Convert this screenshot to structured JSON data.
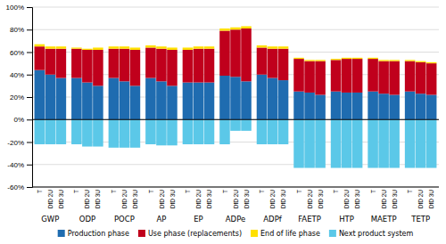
{
  "chart_data": {
    "type": "bar",
    "stacked": true,
    "categories": [
      "GWP",
      "ODP",
      "POCP",
      "AP",
      "EP",
      "ADPe",
      "ADPf",
      "FAETP",
      "HTP",
      "MAETP",
      "TETP"
    ],
    "subcategories": [
      "T",
      "DfD 2U",
      "DfD 3U"
    ],
    "series": [
      {
        "name": "Production phase",
        "color": "#1F6CB0",
        "values": [
          [
            44,
            40,
            37
          ],
          [
            37,
            33,
            30
          ],
          [
            37,
            34,
            30
          ],
          [
            37,
            34,
            30
          ],
          [
            33,
            33,
            33
          ],
          [
            39,
            38,
            34
          ],
          [
            40,
            37,
            35
          ],
          [
            25,
            24,
            22
          ],
          [
            25,
            24,
            24
          ],
          [
            25,
            23,
            22
          ],
          [
            25,
            23,
            22
          ]
        ]
      },
      {
        "name": "Use phase (replacements)",
        "color": "#C0001C",
        "values": [
          [
            21,
            23,
            26
          ],
          [
            26,
            29,
            32
          ],
          [
            26,
            29,
            32
          ],
          [
            27,
            29,
            32
          ],
          [
            29,
            30,
            30
          ],
          [
            40,
            42,
            47
          ],
          [
            24,
            26,
            28
          ],
          [
            29,
            28,
            30
          ],
          [
            28,
            30,
            30
          ],
          [
            29,
            29,
            30
          ],
          [
            27,
            28,
            28
          ]
        ]
      },
      {
        "name": "End of life phase",
        "color": "#FFE000",
        "values": [
          [
            2,
            2,
            2
          ],
          [
            1,
            1,
            2
          ],
          [
            2,
            2,
            2
          ],
          [
            2,
            2,
            2
          ],
          [
            2,
            2,
            2
          ],
          [
            2,
            2,
            2
          ],
          [
            2,
            2,
            2
          ],
          [
            1,
            1,
            1
          ],
          [
            1,
            1,
            1
          ],
          [
            1,
            1,
            1
          ],
          [
            1,
            1,
            1
          ]
        ]
      },
      {
        "name": "Next product system",
        "color": "#5BC8E8",
        "values": [
          [
            -22,
            -22,
            -22
          ],
          [
            -22,
            -24,
            -24
          ],
          [
            -25,
            -25,
            -25
          ],
          [
            -22,
            -23,
            -23
          ],
          [
            -22,
            -22,
            -22
          ],
          [
            -22,
            -10,
            -10
          ],
          [
            -22,
            -22,
            -22
          ],
          [
            -43,
            -43,
            -43
          ],
          [
            -43,
            -43,
            -43
          ],
          [
            -43,
            -43,
            -43
          ],
          [
            -43,
            -43,
            -43
          ]
        ]
      }
    ],
    "ylim": [
      -60,
      100
    ],
    "yticks": [
      {
        "value": -60,
        "label": "-60%"
      },
      {
        "value": -40,
        "label": "-40%"
      },
      {
        "value": -20,
        "label": "-20%"
      },
      {
        "value": 0,
        "label": "0%"
      },
      {
        "value": 20,
        "label": "20%"
      },
      {
        "value": 40,
        "label": "40%"
      },
      {
        "value": 60,
        "label": "60%"
      },
      {
        "value": 80,
        "label": "80%"
      },
      {
        "value": 100,
        "label": "100%"
      }
    ],
    "grid": true,
    "legend": "bottom"
  }
}
